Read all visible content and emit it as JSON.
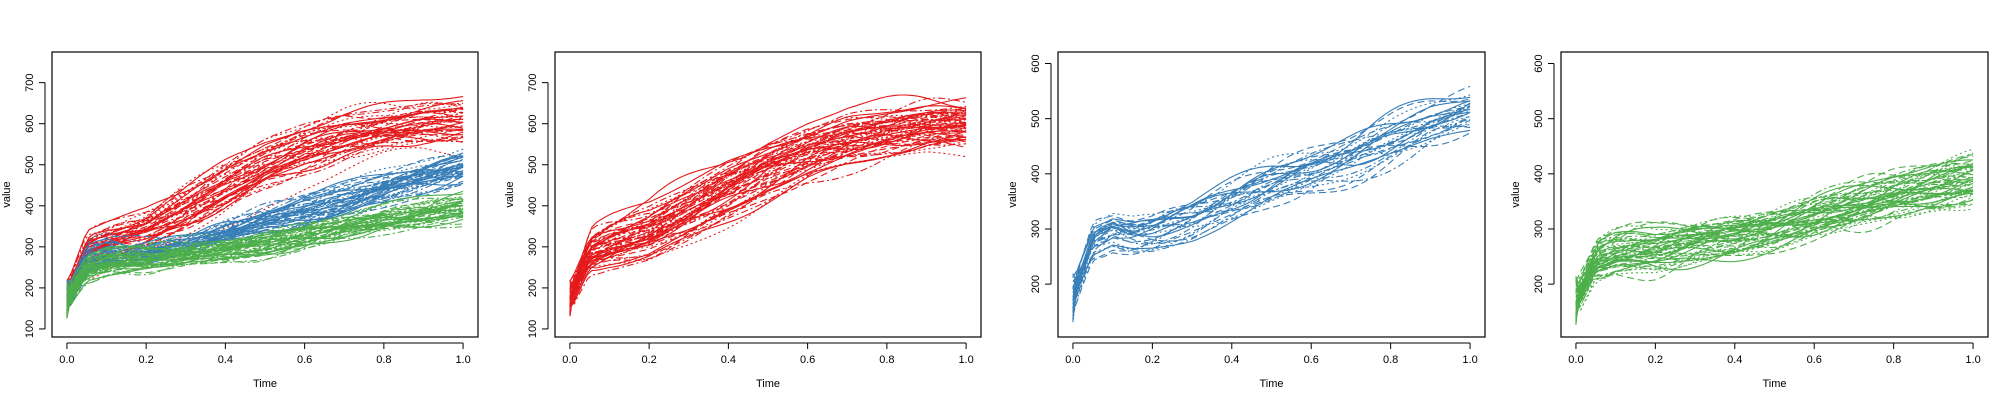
{
  "chart_data": [
    {
      "type": "line",
      "xlabel": "Time",
      "ylabel": "value",
      "xlim": [
        0,
        1
      ],
      "ylim": [
        95,
        760
      ],
      "xticks": [
        "0.0",
        "0.2",
        "0.4",
        "0.6",
        "0.8",
        "1.0"
      ],
      "yticks": [
        "100",
        "200",
        "300",
        "400",
        "500",
        "600",
        "700"
      ],
      "groups_shown": [
        "red",
        "blue",
        "green"
      ],
      "series_colors": [
        "#e41a1c",
        "#377eb8",
        "#4daf4a"
      ],
      "line_styles": [
        "solid",
        "dashed",
        "dotted",
        "dashdot"
      ],
      "x": [
        0.0,
        0.05,
        0.1,
        0.15,
        0.2,
        0.3,
        0.4,
        0.5,
        0.6,
        0.7,
        0.8,
        0.9,
        1.0
      ],
      "group_means": {
        "red": [
          175,
          285,
          305,
          320,
          335,
          385,
          440,
          490,
          530,
          560,
          580,
          595,
          600
        ],
        "blue": [
          175,
          270,
          290,
          285,
          290,
          310,
          340,
          370,
          395,
          420,
          450,
          480,
          505
        ],
        "green": [
          170,
          240,
          255,
          260,
          262,
          275,
          285,
          300,
          320,
          340,
          360,
          375,
          390
        ]
      },
      "group_bands": {
        "red": [
          60,
          70,
          75,
          80,
          85,
          95,
          100,
          100,
          95,
          90,
          80,
          75,
          75
        ],
        "blue": [
          50,
          50,
          45,
          40,
          40,
          45,
          50,
          55,
          60,
          60,
          60,
          60,
          60
        ],
        "green": [
          45,
          45,
          45,
          45,
          45,
          45,
          45,
          45,
          45,
          45,
          50,
          55,
          55
        ]
      },
      "curves_per_group": 45
    },
    {
      "type": "line",
      "xlabel": "Time",
      "ylabel": "value",
      "xlim": [
        0,
        1
      ],
      "ylim": [
        95,
        760
      ],
      "xticks": [
        "0.0",
        "0.2",
        "0.4",
        "0.6",
        "0.8",
        "1.0"
      ],
      "yticks": [
        "100",
        "200",
        "300",
        "400",
        "500",
        "600",
        "700"
      ],
      "groups_shown": [
        "red"
      ],
      "series_colors": [
        "#e41a1c"
      ],
      "line_styles": [
        "solid",
        "dashed",
        "dotted",
        "dashdot"
      ],
      "x": [
        0.0,
        0.05,
        0.1,
        0.15,
        0.2,
        0.3,
        0.4,
        0.5,
        0.6,
        0.7,
        0.8,
        0.9,
        1.0
      ],
      "group_means": {
        "red": [
          175,
          285,
          305,
          320,
          335,
          385,
          440,
          490,
          530,
          560,
          580,
          595,
          600
        ]
      },
      "group_bands": {
        "red": [
          60,
          70,
          75,
          80,
          85,
          95,
          100,
          100,
          95,
          90,
          80,
          75,
          75
        ]
      },
      "curves_per_group": 60
    },
    {
      "type": "line",
      "xlabel": "Time",
      "ylabel": "value",
      "xlim": [
        0,
        1
      ],
      "ylim": [
        115,
        610
      ],
      "xticks": [
        "0.0",
        "0.2",
        "0.4",
        "0.6",
        "0.8",
        "1.0"
      ],
      "yticks": [
        "200",
        "300",
        "400",
        "500",
        "600"
      ],
      "groups_shown": [
        "blue"
      ],
      "series_colors": [
        "#377eb8"
      ],
      "line_styles": [
        "solid",
        "dashed",
        "dotted",
        "dashdot"
      ],
      "x": [
        0.0,
        0.05,
        0.1,
        0.15,
        0.2,
        0.3,
        0.4,
        0.5,
        0.6,
        0.7,
        0.8,
        0.9,
        1.0
      ],
      "group_means": {
        "blue": [
          175,
          270,
          290,
          285,
          290,
          310,
          340,
          370,
          395,
          420,
          450,
          480,
          505
        ]
      },
      "group_bands": {
        "blue": [
          50,
          50,
          45,
          40,
          40,
          45,
          50,
          55,
          60,
          60,
          60,
          60,
          60
        ]
      },
      "curves_per_group": 30
    },
    {
      "type": "line",
      "xlabel": "Time",
      "ylabel": "value",
      "xlim": [
        0,
        1
      ],
      "ylim": [
        115,
        610
      ],
      "xticks": [
        "0.0",
        "0.2",
        "0.4",
        "0.6",
        "0.8",
        "1.0"
      ],
      "yticks": [
        "200",
        "300",
        "400",
        "500",
        "600"
      ],
      "groups_shown": [
        "green"
      ],
      "series_colors": [
        "#4daf4a"
      ],
      "line_styles": [
        "solid",
        "dashed",
        "dotted",
        "dashdot"
      ],
      "x": [
        0.0,
        0.05,
        0.1,
        0.15,
        0.2,
        0.3,
        0.4,
        0.5,
        0.6,
        0.7,
        0.8,
        0.9,
        1.0
      ],
      "group_means": {
        "green": [
          170,
          240,
          255,
          260,
          262,
          275,
          285,
          300,
          320,
          340,
          360,
          375,
          390
        ]
      },
      "group_bands": {
        "green": [
          45,
          45,
          45,
          45,
          45,
          45,
          45,
          45,
          45,
          45,
          50,
          55,
          55
        ]
      },
      "curves_per_group": 55
    }
  ]
}
